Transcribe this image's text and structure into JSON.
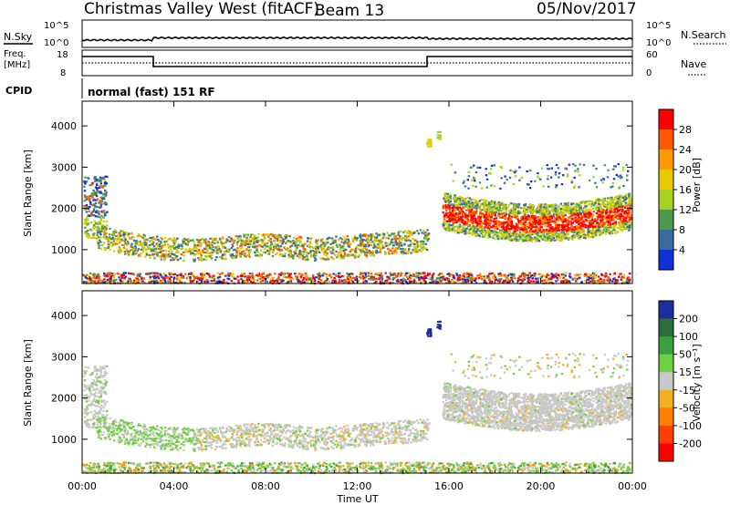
{
  "header": {
    "title": "Christmas Valley West (fitACF)",
    "beam": "Beam 13",
    "date": "05/Nov/2017"
  },
  "nsky_panel": {
    "left_label": "N.Sky",
    "right_label": "N.Search",
    "left_ticks": [
      "10^5",
      "10^0"
    ],
    "right_ticks": [
      "10^5",
      "10^0"
    ]
  },
  "freq_panel": {
    "left_label_line1": "Freq.",
    "left_label_line2": "[MHz]",
    "left_ticks": [
      "18",
      "8"
    ],
    "right_label": "Nave",
    "right_ticks": [
      "60",
      "0"
    ]
  },
  "cpid": {
    "label": "CPID",
    "value": "normal (fast) 151 RF"
  },
  "chart_data": [
    {
      "type": "heatmap",
      "name": "power",
      "ylabel": "Slant Range [km]",
      "yticks": [
        1000,
        2000,
        3000,
        4000
      ],
      "ylim": [
        180,
        4600
      ],
      "xlim_hours": [
        0,
        24
      ],
      "colorbar": {
        "label": "Power [dB]",
        "ticks": [
          "28",
          "24",
          "20",
          "16",
          "12",
          "8",
          "4"
        ],
        "colors": [
          "#ff0000",
          "#ff5a00",
          "#ff9a00",
          "#e8c800",
          "#a8d020",
          "#4c9a4c",
          "#3a6aa0",
          "#1030d8"
        ]
      }
    },
    {
      "type": "heatmap",
      "name": "velocity",
      "ylabel": "Slant Range [km]",
      "yticks": [
        1000,
        2000,
        3000,
        4000
      ],
      "ylim": [
        180,
        4600
      ],
      "xlim_hours": [
        0,
        24
      ],
      "colorbar": {
        "label": "Velocity [m s⁻¹]",
        "ticks": [
          "200",
          "100",
          "50",
          "15",
          "-15",
          "-50",
          "-100",
          "-200"
        ],
        "colors": [
          "#1a2ea0",
          "#2e6e3e",
          "#3aa040",
          "#70d040",
          "#c8c8c8",
          "#f0b020",
          "#ff8000",
          "#ff4000",
          "#ff0000"
        ]
      }
    }
  ],
  "xaxis": {
    "label": "Time UT",
    "ticks": [
      "00:00",
      "04:00",
      "08:00",
      "12:00",
      "16:00",
      "20:00",
      "00:00"
    ]
  }
}
